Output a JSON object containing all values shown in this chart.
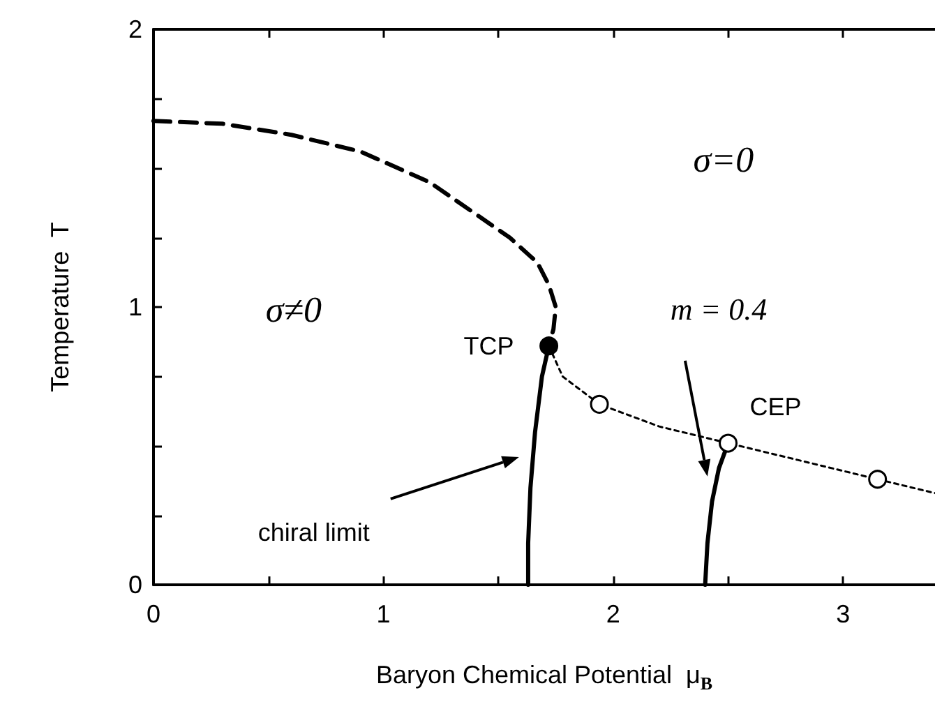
{
  "chart_data": {
    "type": "line",
    "xlabel": "Baryon Chemical Potential  μ$_{B}$",
    "ylabel": "Temperature  T",
    "xlim": [
      0,
      3.4
    ],
    "xticks": [
      0,
      {
        "value": 0.5,
        "label": null
      },
      1,
      {
        "value": 1.5,
        "label": null
      },
      2,
      {
        "value": 2.5,
        "label": null
      },
      3
    ],
    "ylim": [
      0,
      2
    ],
    "yticks": [
      0,
      {
        "value": 0.25,
        "label": null
      },
      {
        "value": 0.5,
        "label": null
      },
      {
        "value": 0.75,
        "label": null
      },
      1,
      {
        "value": 1.25,
        "label": null
      },
      {
        "value": 1.5,
        "label": null
      },
      {
        "value": 1.75,
        "label": null
      },
      2
    ],
    "grid": false,
    "series": [
      {
        "color": "#000000",
        "line_style": "dashed",
        "marker": "none",
        "x": [
          0,
          0.3,
          0.6,
          0.9,
          1.2,
          1.41,
          1.55,
          1.67,
          1.72,
          1.75,
          1.74,
          1.72
        ],
        "values": [
          1.67,
          1.66,
          1.62,
          1.56,
          1.45,
          1.33,
          1.25,
          1.16,
          1.08,
          1.0,
          0.92,
          0.86
        ]
      },
      {
        "color": "#000000",
        "line_style": "solid",
        "marker": "none",
        "x": [
          1.72,
          1.69,
          1.66,
          1.64,
          1.63,
          1.63
        ],
        "values": [
          0.86,
          0.75,
          0.55,
          0.35,
          0.15,
          0
        ]
      },
      {
        "color": "#000000",
        "line_style": "dotted",
        "marker": "none",
        "x": [
          1.72,
          1.78,
          1.94,
          2.2,
          2.5,
          2.8,
          3.15,
          3.4
        ],
        "values": [
          0.86,
          0.75,
          0.65,
          0.57,
          0.51,
          0.45,
          0.38,
          0.33
        ]
      },
      {
        "color": "#000000",
        "line_style": "solid",
        "marker": "none",
        "x": [
          2.5,
          2.46,
          2.43,
          2.41,
          2.4
        ],
        "values": [
          0.51,
          0.42,
          0.3,
          0.15,
          0
        ]
      },
      {
        "type": "scatter",
        "color": "#000000",
        "marker": "circle",
        "x": [
          1.72
        ],
        "values": [
          0.86
        ]
      },
      {
        "type": "scatter",
        "color": "#ffffff",
        "marker": "circle",
        "x": [
          1.94,
          2.5,
          3.15
        ],
        "values": [
          0.65,
          0.51,
          0.38
        ]
      }
    ],
    "annotations": [
      "σ≠0",
      "σ=0",
      {
        "text": "TCP",
        "x": 1.72,
        "y": 0.86
      },
      {
        "text": "CEP",
        "x": 2.5,
        "y": 0.51
      },
      "m = 0.4",
      "chiral limit"
    ]
  }
}
